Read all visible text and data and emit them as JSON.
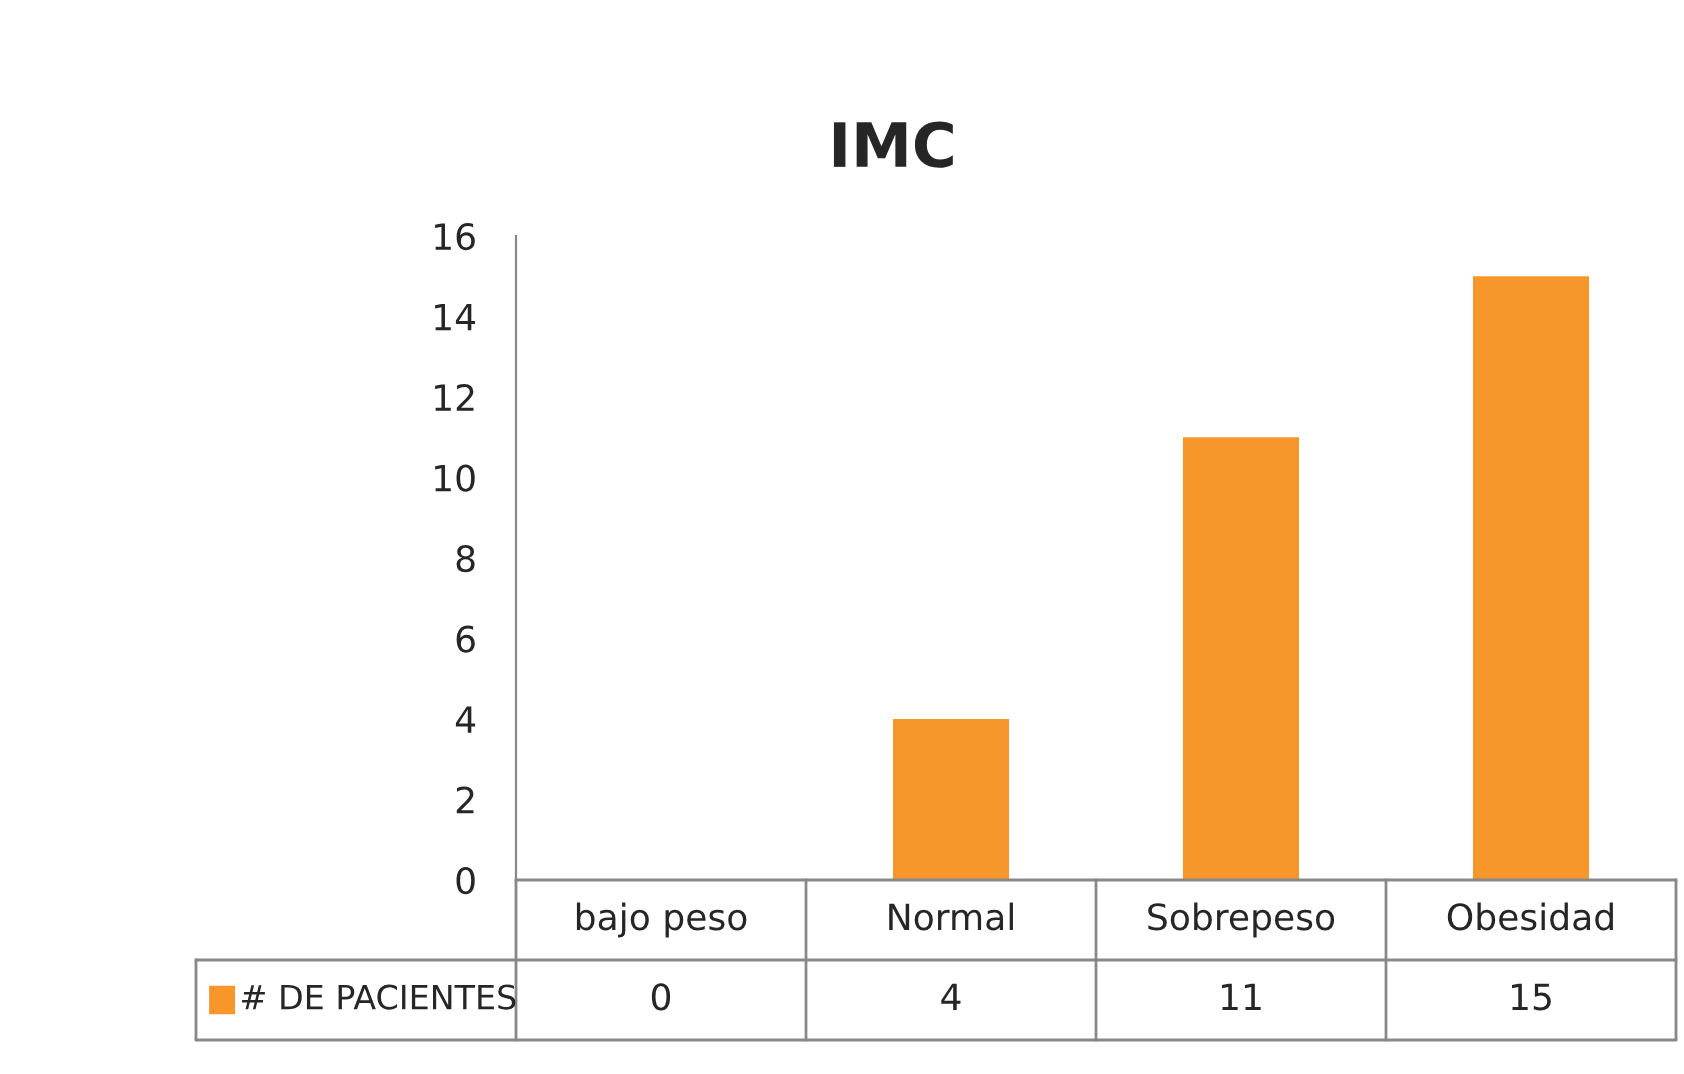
{
  "chart_data": {
    "type": "bar",
    "title": "IMC",
    "categories": [
      "bajo peso",
      "Normal",
      "Sobrepeso",
      "Obesidad"
    ],
    "series": [
      {
        "name": "# DE PACIENTES",
        "color": "#f7962b",
        "values": [
          0,
          4,
          11,
          15
        ]
      }
    ],
    "ylim": [
      0,
      16
    ],
    "yticks": [
      0,
      2,
      4,
      6,
      8,
      10,
      12,
      14,
      16
    ],
    "grid": false,
    "legend": "bottom",
    "data_labels": true
  }
}
